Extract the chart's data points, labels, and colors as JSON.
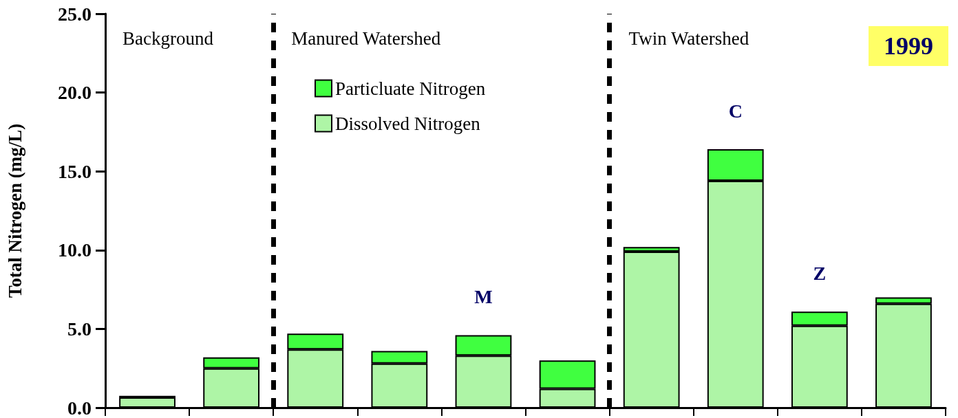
{
  "chart_data": {
    "type": "bar",
    "stacked": true,
    "ylabel": "Total Nitrogen (mg/L)",
    "categories": [
      null,
      null,
      null,
      null,
      null,
      null,
      null,
      null,
      null,
      null
    ],
    "ylim": [
      0,
      25
    ],
    "yticks": [
      {
        "value": 0,
        "label": "0.0"
      },
      {
        "value": 5,
        "label": "5.0"
      },
      {
        "value": 10,
        "label": "10.0"
      },
      {
        "value": 15,
        "label": "15.0"
      },
      {
        "value": 20,
        "label": "20.0"
      },
      {
        "value": 25,
        "label": "25.0"
      }
    ],
    "grid": false,
    "legend": "top",
    "series": [
      {
        "name": "Dissolved Nitrogen",
        "color": "#aef5a6",
        "values": [
          0.65,
          2.5,
          3.7,
          2.8,
          3.3,
          1.2,
          9.9,
          14.4,
          5.2,
          6.6
        ]
      },
      {
        "name": "Particluate Nitrogen",
        "color": "#40ff40",
        "values": [
          0.1,
          0.7,
          1.0,
          0.8,
          1.3,
          1.8,
          0.3,
          2.0,
          0.9,
          0.4
        ],
        "value_labels": [
          null,
          null,
          null,
          null,
          "M",
          null,
          null,
          "C",
          "Z",
          null
        ]
      }
    ],
    "annotations": [
      "Background",
      "Manured Watershed",
      "Twin Watershed",
      "1999"
    ]
  }
}
